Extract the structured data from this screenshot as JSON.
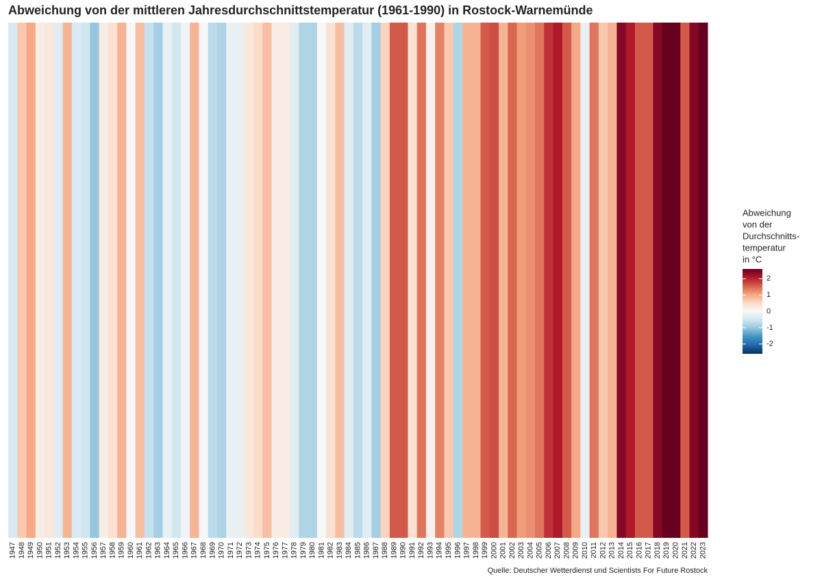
{
  "chart_data": {
    "type": "stripes",
    "title": "Abweichung von der mittleren Jahresdurchschnittstemperatur (1961-1990) in Rostock-Warnemünde",
    "caption": "Quelle: Deutscher Wetterdienst und Scientists For Future Rostock",
    "legend_title": [
      "Abweichung",
      "von der",
      "Durchschnitts-",
      "temperatur",
      "in °C"
    ],
    "categories": [
      "1947",
      "1948",
      "1949",
      "1950",
      "1951",
      "1952",
      "1953",
      "1954",
      "1955",
      "1956",
      "1957",
      "1958",
      "1959",
      "1960",
      "1961",
      "1962",
      "1963",
      "1964",
      "1965",
      "1966",
      "1967",
      "1968",
      "1969",
      "1970",
      "1971",
      "1972",
      "1973",
      "1974",
      "1975",
      "1976",
      "1977",
      "1978",
      "1979",
      "1980",
      "1981",
      "1982",
      "1983",
      "1984",
      "1985",
      "1986",
      "1987",
      "1988",
      "1989",
      "1990",
      "1991",
      "1992",
      "1993",
      "1994",
      "1995",
      "1996",
      "1997",
      "1998",
      "1999",
      "2000",
      "2001",
      "2002",
      "2003",
      "2004",
      "2005",
      "2006",
      "2007",
      "2008",
      "2009",
      "2010",
      "2011",
      "2012",
      "2013",
      "2014",
      "2015",
      "2016",
      "2017",
      "2018",
      "2019",
      "2020",
      "2021",
      "2022",
      "2023"
    ],
    "values": [
      -0.4,
      0.7,
      1.0,
      0.2,
      0.3,
      -0.3,
      0.9,
      -0.4,
      -0.5,
      -1.0,
      0.2,
      0.4,
      0.9,
      0.0,
      0.8,
      -0.6,
      -0.9,
      -0.2,
      -0.5,
      -0.1,
      0.9,
      0.0,
      -0.7,
      -0.8,
      -0.2,
      -0.2,
      0.3,
      0.5,
      0.8,
      0.2,
      0.2,
      -0.3,
      -0.8,
      -0.8,
      0.0,
      0.4,
      0.8,
      -0.3,
      -0.7,
      -0.3,
      -0.9,
      0.6,
      1.6,
      1.6,
      0.4,
      1.4,
      0.1,
      1.3,
      0.7,
      -0.8,
      0.9,
      0.9,
      1.6,
      1.7,
      0.9,
      1.5,
      1.1,
      1.2,
      1.4,
      1.9,
      2.1,
      1.6,
      1.0,
      -0.2,
      1.4,
      0.7,
      0.9,
      2.4,
      2.1,
      1.6,
      1.6,
      2.4,
      2.6,
      2.6,
      1.6,
      2.4,
      2.6
    ],
    "color_limits": [
      -2.6,
      2.6
    ],
    "colors": [
      "#053061",
      "#2166ac",
      "#4393c3",
      "#92c5de",
      "#d1e5f0",
      "#f7f7f7",
      "#fddbc7",
      "#f4a582",
      "#d6604d",
      "#b2182b",
      "#67001f"
    ],
    "legend_ticks": [
      -2,
      -1,
      0,
      1,
      2
    ]
  }
}
